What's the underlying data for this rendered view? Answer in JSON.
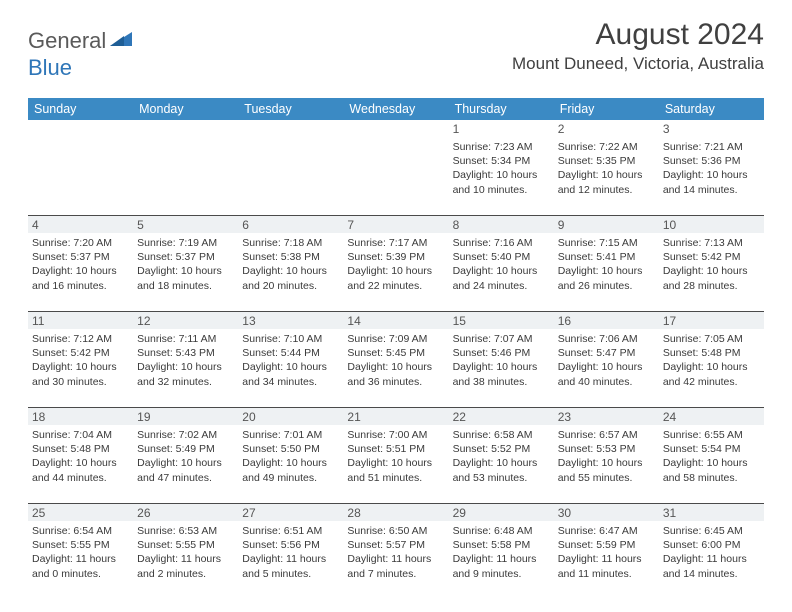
{
  "brand": {
    "part1": "General",
    "part2": "Blue"
  },
  "title": "August 2024",
  "location": "Mount Duneed, Victoria, Australia",
  "colors": {
    "header_bg": "#3b8ac4",
    "header_fg": "#ffffff",
    "daynum_bg": "#eef1f3",
    "rule": "#4a4a4a",
    "text": "#3a3a3a",
    "brand_blue": "#2f76b8"
  },
  "weekdays": [
    "Sunday",
    "Monday",
    "Tuesday",
    "Wednesday",
    "Thursday",
    "Friday",
    "Saturday"
  ],
  "weeks": [
    {
      "first": true,
      "days": [
        {
          "n": "",
          "lines": [
            "",
            "",
            "",
            ""
          ]
        },
        {
          "n": "",
          "lines": [
            "",
            "",
            "",
            ""
          ]
        },
        {
          "n": "",
          "lines": [
            "",
            "",
            "",
            ""
          ]
        },
        {
          "n": "",
          "lines": [
            "",
            "",
            "",
            ""
          ]
        },
        {
          "n": "1",
          "lines": [
            "Sunrise: 7:23 AM",
            "Sunset: 5:34 PM",
            "Daylight: 10 hours",
            "and 10 minutes."
          ]
        },
        {
          "n": "2",
          "lines": [
            "Sunrise: 7:22 AM",
            "Sunset: 5:35 PM",
            "Daylight: 10 hours",
            "and 12 minutes."
          ]
        },
        {
          "n": "3",
          "lines": [
            "Sunrise: 7:21 AM",
            "Sunset: 5:36 PM",
            "Daylight: 10 hours",
            "and 14 minutes."
          ]
        }
      ]
    },
    {
      "days": [
        {
          "n": "4",
          "lines": [
            "Sunrise: 7:20 AM",
            "Sunset: 5:37 PM",
            "Daylight: 10 hours",
            "and 16 minutes."
          ]
        },
        {
          "n": "5",
          "lines": [
            "Sunrise: 7:19 AM",
            "Sunset: 5:37 PM",
            "Daylight: 10 hours",
            "and 18 minutes."
          ]
        },
        {
          "n": "6",
          "lines": [
            "Sunrise: 7:18 AM",
            "Sunset: 5:38 PM",
            "Daylight: 10 hours",
            "and 20 minutes."
          ]
        },
        {
          "n": "7",
          "lines": [
            "Sunrise: 7:17 AM",
            "Sunset: 5:39 PM",
            "Daylight: 10 hours",
            "and 22 minutes."
          ]
        },
        {
          "n": "8",
          "lines": [
            "Sunrise: 7:16 AM",
            "Sunset: 5:40 PM",
            "Daylight: 10 hours",
            "and 24 minutes."
          ]
        },
        {
          "n": "9",
          "lines": [
            "Sunrise: 7:15 AM",
            "Sunset: 5:41 PM",
            "Daylight: 10 hours",
            "and 26 minutes."
          ]
        },
        {
          "n": "10",
          "lines": [
            "Sunrise: 7:13 AM",
            "Sunset: 5:42 PM",
            "Daylight: 10 hours",
            "and 28 minutes."
          ]
        }
      ]
    },
    {
      "days": [
        {
          "n": "11",
          "lines": [
            "Sunrise: 7:12 AM",
            "Sunset: 5:42 PM",
            "Daylight: 10 hours",
            "and 30 minutes."
          ]
        },
        {
          "n": "12",
          "lines": [
            "Sunrise: 7:11 AM",
            "Sunset: 5:43 PM",
            "Daylight: 10 hours",
            "and 32 minutes."
          ]
        },
        {
          "n": "13",
          "lines": [
            "Sunrise: 7:10 AM",
            "Sunset: 5:44 PM",
            "Daylight: 10 hours",
            "and 34 minutes."
          ]
        },
        {
          "n": "14",
          "lines": [
            "Sunrise: 7:09 AM",
            "Sunset: 5:45 PM",
            "Daylight: 10 hours",
            "and 36 minutes."
          ]
        },
        {
          "n": "15",
          "lines": [
            "Sunrise: 7:07 AM",
            "Sunset: 5:46 PM",
            "Daylight: 10 hours",
            "and 38 minutes."
          ]
        },
        {
          "n": "16",
          "lines": [
            "Sunrise: 7:06 AM",
            "Sunset: 5:47 PM",
            "Daylight: 10 hours",
            "and 40 minutes."
          ]
        },
        {
          "n": "17",
          "lines": [
            "Sunrise: 7:05 AM",
            "Sunset: 5:48 PM",
            "Daylight: 10 hours",
            "and 42 minutes."
          ]
        }
      ]
    },
    {
      "days": [
        {
          "n": "18",
          "lines": [
            "Sunrise: 7:04 AM",
            "Sunset: 5:48 PM",
            "Daylight: 10 hours",
            "and 44 minutes."
          ]
        },
        {
          "n": "19",
          "lines": [
            "Sunrise: 7:02 AM",
            "Sunset: 5:49 PM",
            "Daylight: 10 hours",
            "and 47 minutes."
          ]
        },
        {
          "n": "20",
          "lines": [
            "Sunrise: 7:01 AM",
            "Sunset: 5:50 PM",
            "Daylight: 10 hours",
            "and 49 minutes."
          ]
        },
        {
          "n": "21",
          "lines": [
            "Sunrise: 7:00 AM",
            "Sunset: 5:51 PM",
            "Daylight: 10 hours",
            "and 51 minutes."
          ]
        },
        {
          "n": "22",
          "lines": [
            "Sunrise: 6:58 AM",
            "Sunset: 5:52 PM",
            "Daylight: 10 hours",
            "and 53 minutes."
          ]
        },
        {
          "n": "23",
          "lines": [
            "Sunrise: 6:57 AM",
            "Sunset: 5:53 PM",
            "Daylight: 10 hours",
            "and 55 minutes."
          ]
        },
        {
          "n": "24",
          "lines": [
            "Sunrise: 6:55 AM",
            "Sunset: 5:54 PM",
            "Daylight: 10 hours",
            "and 58 minutes."
          ]
        }
      ]
    },
    {
      "days": [
        {
          "n": "25",
          "lines": [
            "Sunrise: 6:54 AM",
            "Sunset: 5:55 PM",
            "Daylight: 11 hours",
            "and 0 minutes."
          ]
        },
        {
          "n": "26",
          "lines": [
            "Sunrise: 6:53 AM",
            "Sunset: 5:55 PM",
            "Daylight: 11 hours",
            "and 2 minutes."
          ]
        },
        {
          "n": "27",
          "lines": [
            "Sunrise: 6:51 AM",
            "Sunset: 5:56 PM",
            "Daylight: 11 hours",
            "and 5 minutes."
          ]
        },
        {
          "n": "28",
          "lines": [
            "Sunrise: 6:50 AM",
            "Sunset: 5:57 PM",
            "Daylight: 11 hours",
            "and 7 minutes."
          ]
        },
        {
          "n": "29",
          "lines": [
            "Sunrise: 6:48 AM",
            "Sunset: 5:58 PM",
            "Daylight: 11 hours",
            "and 9 minutes."
          ]
        },
        {
          "n": "30",
          "lines": [
            "Sunrise: 6:47 AM",
            "Sunset: 5:59 PM",
            "Daylight: 11 hours",
            "and 11 minutes."
          ]
        },
        {
          "n": "31",
          "lines": [
            "Sunrise: 6:45 AM",
            "Sunset: 6:00 PM",
            "Daylight: 11 hours",
            "and 14 minutes."
          ]
        }
      ]
    }
  ]
}
